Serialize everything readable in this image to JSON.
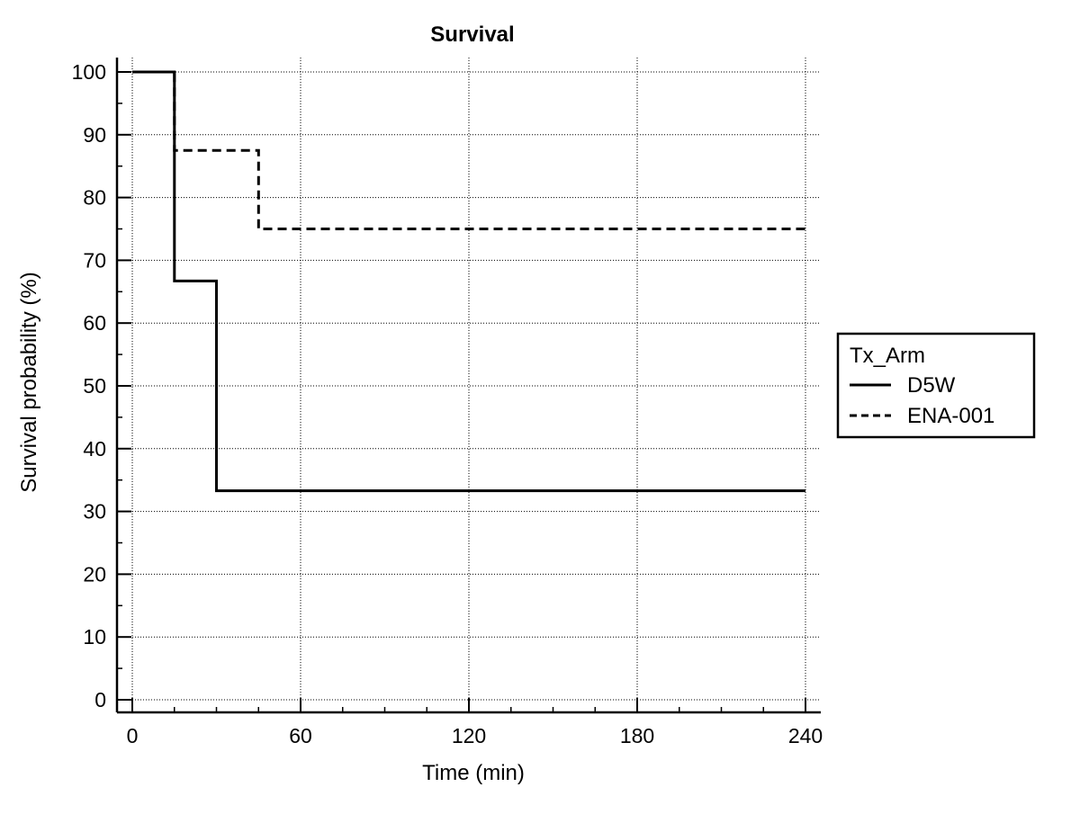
{
  "chart_data": {
    "type": "line",
    "title": "Survival",
    "xlabel": "Time (min)",
    "ylabel": "Survival probability (%)",
    "xlim": [
      0,
      240
    ],
    "ylim": [
      0,
      100
    ],
    "xticks": [
      0,
      60,
      120,
      180,
      240
    ],
    "yticks": [
      0,
      10,
      20,
      30,
      40,
      50,
      60,
      70,
      80,
      90,
      100
    ],
    "grid": true,
    "step": true,
    "legend": {
      "title": "Tx_Arm",
      "placement": "right"
    },
    "series": [
      {
        "name": "D5W",
        "style": "solid",
        "color": "#000000",
        "x": [
          0,
          15,
          15,
          30,
          30,
          240
        ],
        "y": [
          100,
          100,
          66.7,
          66.7,
          33.3,
          33.3
        ]
      },
      {
        "name": "ENA-001",
        "style": "dashed",
        "color": "#000000",
        "x": [
          0,
          15,
          15,
          45,
          45,
          240
        ],
        "y": [
          100,
          100,
          87.5,
          87.5,
          75,
          75
        ]
      }
    ]
  }
}
